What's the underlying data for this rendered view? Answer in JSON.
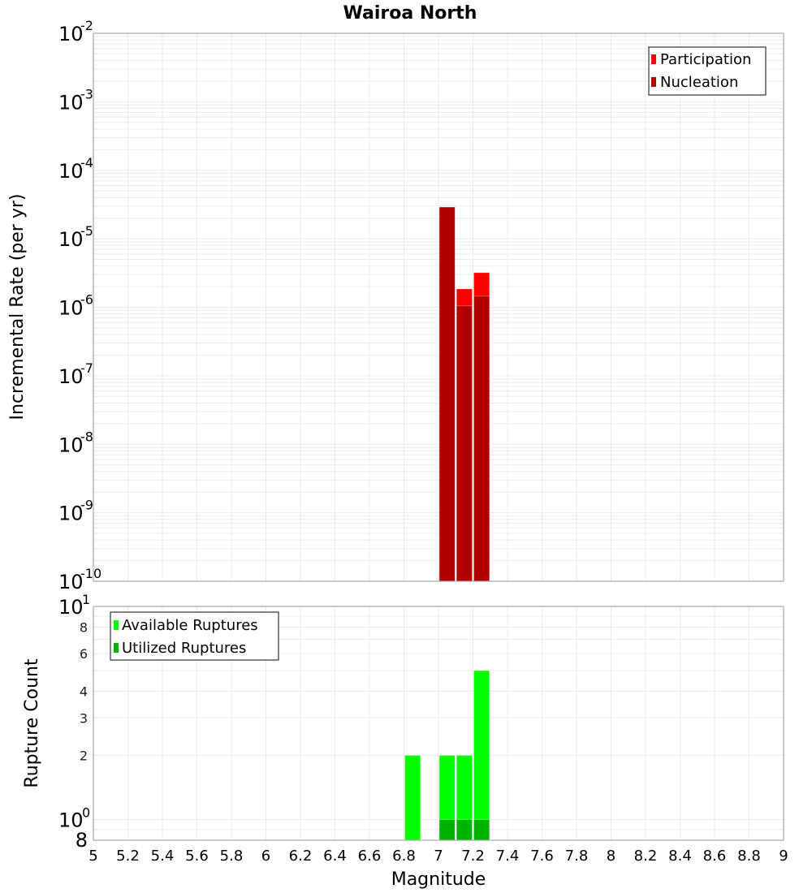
{
  "chart_data": [
    {
      "type": "bar",
      "title": "Wairoa North",
      "xlabel": "Magnitude",
      "ylabel": "Incremental Rate (per yr)",
      "yscale": "log",
      "ylim": [
        1e-10,
        0.01
      ],
      "xlim": [
        5,
        9
      ],
      "x_ticks": [
        "5",
        "5.2",
        "5.4",
        "5.6",
        "5.8",
        "6",
        "6.2",
        "6.4",
        "6.6",
        "6.8",
        "7",
        "7.2",
        "7.4",
        "7.6",
        "7.8",
        "8",
        "8.2",
        "8.4",
        "8.6",
        "8.8",
        "9"
      ],
      "y_tick_exponents": [
        -2,
        -3,
        -4,
        -5,
        -6,
        -7,
        -8,
        -9,
        -10
      ],
      "grid": true,
      "legend_position": "top-right",
      "bin_width": 0.1,
      "series": [
        {
          "name": "Participation",
          "color": "#ff0000",
          "bins": [
            {
              "x": 7.05,
              "value": 2.9e-05
            },
            {
              "x": 7.15,
              "value": 1.85e-06
            },
            {
              "x": 7.25,
              "value": 3.2e-06
            }
          ]
        },
        {
          "name": "Nucleation",
          "color": "#b20000",
          "bins": [
            {
              "x": 7.05,
              "value": 2.9e-05
            },
            {
              "x": 7.15,
              "value": 1.05e-06
            },
            {
              "x": 7.25,
              "value": 1.45e-06
            }
          ]
        }
      ]
    },
    {
      "type": "bar",
      "title": "",
      "xlabel": "Magnitude",
      "ylabel": "Rupture Count",
      "yscale": "log",
      "ylim": [
        0.8,
        10
      ],
      "xlim": [
        5,
        9
      ],
      "y_ticks_labeled": [
        {
          "value": 10,
          "label": "10",
          "sup": "1"
        },
        {
          "value": 8,
          "label": "8"
        },
        {
          "value": 6,
          "label": "6"
        },
        {
          "value": 4,
          "label": "4"
        },
        {
          "value": 3,
          "label": "3"
        },
        {
          "value": 2,
          "label": "2"
        },
        {
          "value": 1,
          "label": "10",
          "sup": "0"
        },
        {
          "value": 0.8,
          "label": "8"
        }
      ],
      "grid": true,
      "legend_position": "top-left",
      "bin_width": 0.1,
      "series": [
        {
          "name": "Available Ruptures",
          "color": "#00ff00",
          "bins": [
            {
              "x": 6.85,
              "value": 2
            },
            {
              "x": 7.05,
              "value": 2
            },
            {
              "x": 7.15,
              "value": 2
            },
            {
              "x": 7.25,
              "value": 5
            }
          ]
        },
        {
          "name": "Utilized Ruptures",
          "color": "#00b200",
          "bins": [
            {
              "x": 7.05,
              "value": 1
            },
            {
              "x": 7.15,
              "value": 1
            },
            {
              "x": 7.25,
              "value": 1
            }
          ]
        }
      ]
    }
  ],
  "labels": {
    "title": "Wairoa North",
    "top_ylabel": "Incremental Rate (per yr)",
    "bottom_ylabel": "Rupture Count",
    "xlabel": "Magnitude",
    "legend_top": [
      "Participation",
      "Nucleation"
    ],
    "legend_bottom": [
      "Available Ruptures",
      "Utilized Ruptures"
    ]
  },
  "colors": {
    "participation": "#ff0000",
    "nucleation": "#b20000",
    "available": "#00ff00",
    "utilized": "#00b200",
    "grid": "#ebebeb",
    "frame": "#a8a8a8"
  }
}
